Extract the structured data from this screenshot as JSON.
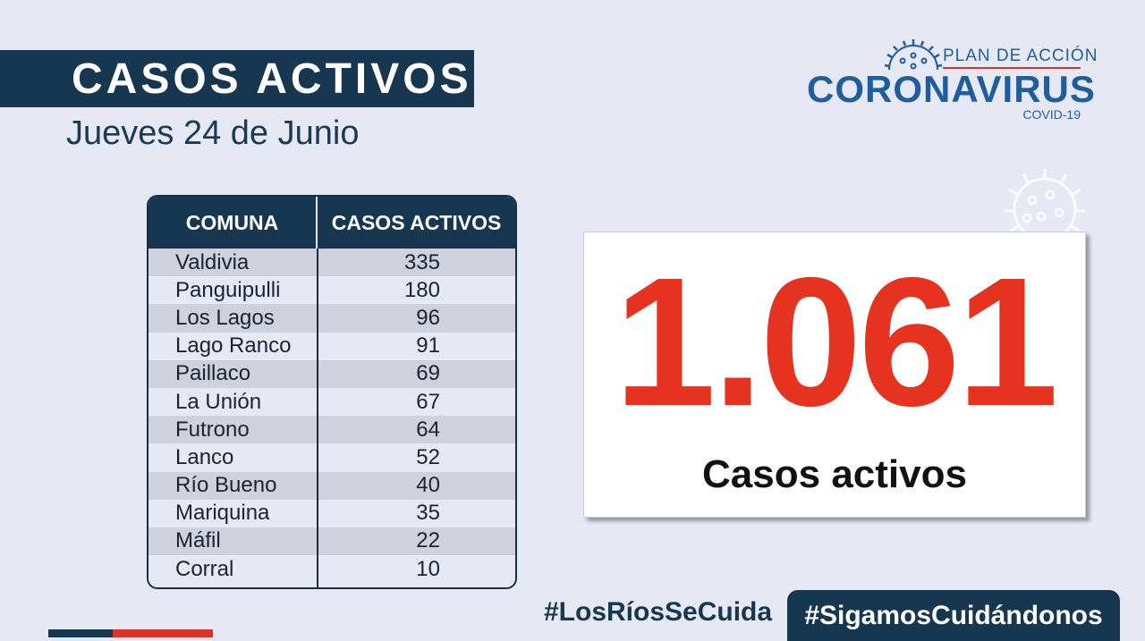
{
  "header": {
    "title": "CASOS ACTIVOS",
    "date": "Jueves 24 de Junio"
  },
  "logo": {
    "plan": "PLAN DE ACCIÓN",
    "name": "CORONAVIRUS",
    "sub": "COVID-19"
  },
  "table": {
    "headers": [
      "COMUNA",
      "CASOS ACTIVOS"
    ],
    "rows": [
      {
        "comuna": "Valdivia",
        "casos": "335"
      },
      {
        "comuna": "Panguipulli",
        "casos": "180"
      },
      {
        "comuna": "Los Lagos",
        "casos": "96"
      },
      {
        "comuna": "Lago Ranco",
        "casos": "91"
      },
      {
        "comuna": "Paillaco",
        "casos": "69"
      },
      {
        "comuna": "La Unión",
        "casos": "67"
      },
      {
        "comuna": "Futrono",
        "casos": "64"
      },
      {
        "comuna": "Lanco",
        "casos": "52"
      },
      {
        "comuna": "Río Bueno",
        "casos": "40"
      },
      {
        "comuna": "Mariquina",
        "casos": "35"
      },
      {
        "comuna": "Máfil",
        "casos": "22"
      },
      {
        "comuna": "Corral",
        "casos": "10"
      }
    ]
  },
  "total": {
    "value": "1.061",
    "label": "Casos activos"
  },
  "hashtags": {
    "primary": "#LosRíosSeCuida",
    "secondary": "#SigamosCuidándonos"
  },
  "colors": {
    "navy": "#17364f",
    "red": "#e53320",
    "logo_blue": "#1f5e9c",
    "background": "#e6e8f4"
  },
  "icons": [
    "virus-icon",
    "virus-decoration-icon"
  ]
}
